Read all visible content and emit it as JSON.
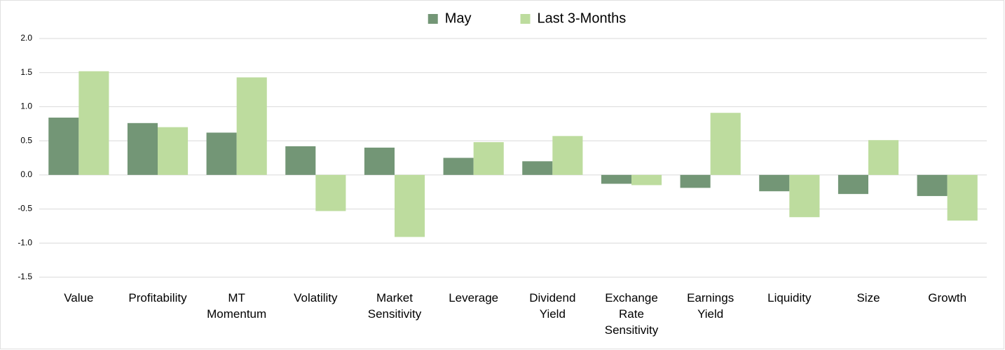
{
  "chart_data": {
    "type": "bar",
    "categories": [
      "Value",
      "Profitability",
      "MT Momentum",
      "Volatility",
      "Market Sensitivity",
      "Leverage",
      "Dividend Yield",
      "Exchange Rate Sensitivity",
      "Earnings Yield",
      "Liquidity",
      "Size",
      "Growth"
    ],
    "series": [
      {
        "name": "May",
        "color": "#739676",
        "values": [
          0.84,
          0.76,
          0.62,
          0.42,
          0.4,
          0.25,
          0.2,
          -0.13,
          -0.19,
          -0.24,
          -0.28,
          -0.31
        ]
      },
      {
        "name": "Last 3-Months",
        "color": "#bddc9e",
        "values": [
          1.52,
          0.7,
          1.43,
          -0.53,
          -0.91,
          0.48,
          0.57,
          -0.15,
          0.91,
          -0.62,
          0.51,
          -0.67
        ]
      }
    ],
    "ylim": [
      -1.5,
      2.0
    ],
    "yticks": [
      -1.5,
      {
        "value": -1,
        "label": "-1.0"
      },
      -0.5,
      {
        "value": 0,
        "label": "0.0"
      },
      0.5,
      {
        "value": 1,
        "label": "1.0"
      },
      1.5,
      {
        "value": 2,
        "label": "2.0"
      }
    ],
    "grid": true,
    "legend": "top"
  }
}
